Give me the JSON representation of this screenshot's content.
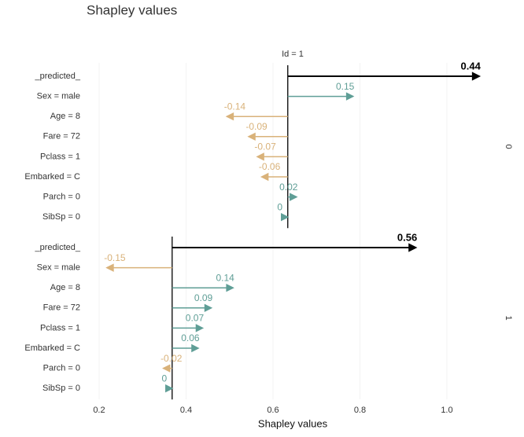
{
  "chart_data": {
    "type": "waterfall-arrows",
    "title": "Shapley values",
    "x_label": "Shapley values",
    "strip_label": "Id = 1",
    "xlim": [
      0.17,
      1.13
    ],
    "xticks": [
      0.2,
      0.4,
      0.6,
      0.8,
      {
        "value": 1,
        "label": "1.0"
      }
    ],
    "grid": true,
    "positive_color": "#5f9e96",
    "negative_color": "#d9b27a",
    "predicted_color": "#000000",
    "panels": [
      {
        "name": "0",
        "baseline": 0.634,
        "categories": [
          "_predicted_",
          "Sex = male",
          "Age = 8",
          "Fare = 72",
          "Pclass = 1",
          "Embarked = C",
          "Parch = 0",
          "SibSp = 0"
        ],
        "values": [
          0.44,
          0.15,
          -0.14,
          -0.09,
          -0.07,
          -0.06,
          0.02,
          0
        ]
      },
      {
        "name": "1",
        "baseline": 0.368,
        "categories": [
          "_predicted_",
          "Sex = male",
          "Age = 8",
          "Fare = 72",
          "Pclass = 1",
          "Embarked = C",
          "Parch = 0",
          "SibSp = 0"
        ],
        "values": [
          0.56,
          -0.15,
          0.14,
          0.09,
          0.07,
          0.06,
          -0.02,
          0
        ]
      }
    ]
  }
}
